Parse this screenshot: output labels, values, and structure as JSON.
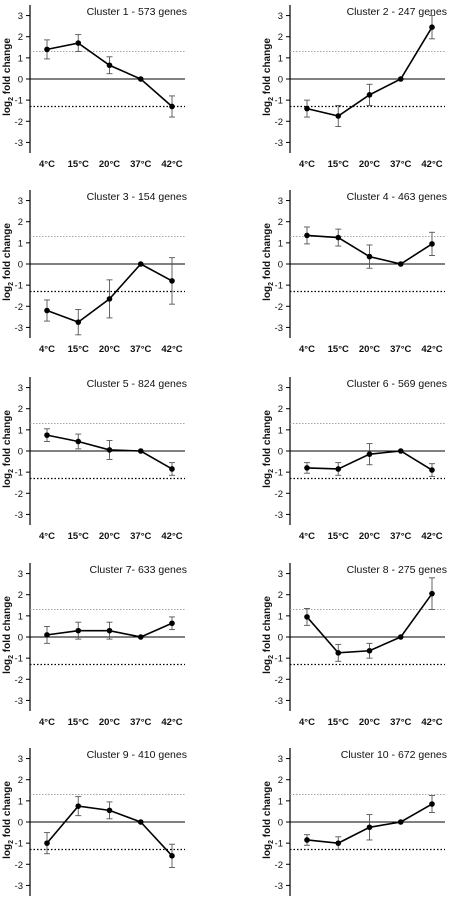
{
  "colors": {
    "line": "#000000",
    "axis": "#000000",
    "threshold_dotted": "#000000",
    "threshold_light": "#9a9a9a",
    "error_bar": "#555555"
  },
  "chart_data": [
    {
      "type": "line",
      "title": "Cluster 1 - 573 genes",
      "ylabel": "log2 fold change",
      "xlabel": "",
      "categories": [
        "4°C",
        "15°C",
        "20°C",
        "37°C",
        "42°C"
      ],
      "values": [
        1.4,
        1.7,
        0.65,
        0.0,
        -1.3
      ],
      "errors": [
        0.45,
        0.4,
        0.4,
        0.0,
        0.5
      ],
      "ylim": [
        -3.5,
        3.5
      ],
      "yticks": [
        3,
        2,
        1,
        0,
        -1,
        -2,
        -3
      ],
      "thresholds": {
        "upper": 1.3,
        "lower": -1.3
      },
      "grid": false
    },
    {
      "type": "line",
      "title": "Cluster 2 - 247 genes",
      "ylabel": "log2 fold change",
      "xlabel": "",
      "categories": [
        "4°C",
        "15°C",
        "20°C",
        "37°C",
        "42°C"
      ],
      "values": [
        -1.4,
        -1.75,
        -0.75,
        0.0,
        2.45
      ],
      "errors": [
        0.4,
        0.5,
        0.5,
        0.0,
        0.55
      ],
      "ylim": [
        -3.5,
        3.5
      ],
      "yticks": [
        3,
        2,
        1,
        0,
        -1,
        -2,
        -3
      ],
      "thresholds": {
        "upper": 1.3,
        "lower": -1.3
      },
      "grid": false
    },
    {
      "type": "line",
      "title": "Cluster 3 - 154 genes",
      "ylabel": "log2 fold change",
      "xlabel": "",
      "categories": [
        "4°C",
        "15°C",
        "20°C",
        "37°C",
        "42°C"
      ],
      "values": [
        -2.2,
        -2.75,
        -1.65,
        0.0,
        -0.8
      ],
      "errors": [
        0.5,
        0.6,
        0.9,
        0.0,
        1.1
      ],
      "ylim": [
        -3.5,
        3.5
      ],
      "yticks": [
        3,
        2,
        1,
        0,
        -1,
        -2,
        -3
      ],
      "thresholds": {
        "upper": 1.3,
        "lower": -1.3
      },
      "grid": false
    },
    {
      "type": "line",
      "title": "Cluster 4 - 463 genes",
      "ylabel": "log2 fold change",
      "xlabel": "",
      "categories": [
        "4°C",
        "15°C",
        "20°C",
        "37°C",
        "42°C"
      ],
      "values": [
        1.35,
        1.25,
        0.35,
        0.0,
        0.95
      ],
      "errors": [
        0.4,
        0.4,
        0.55,
        0.0,
        0.55
      ],
      "ylim": [
        -3.5,
        3.5
      ],
      "yticks": [
        3,
        2,
        1,
        0,
        -1,
        -2,
        -3
      ],
      "thresholds": {
        "upper": 1.3,
        "lower": -1.3
      },
      "grid": false
    },
    {
      "type": "line",
      "title": "Cluster 5 - 824 genes",
      "ylabel": "log2 fold change",
      "xlabel": "",
      "categories": [
        "4°C",
        "15°C",
        "20°C",
        "37°C",
        "42°C"
      ],
      "values": [
        0.75,
        0.45,
        0.05,
        0.0,
        -0.85
      ],
      "errors": [
        0.3,
        0.35,
        0.45,
        0.0,
        0.3
      ],
      "ylim": [
        -3.5,
        3.5
      ],
      "yticks": [
        3,
        2,
        1,
        0,
        -1,
        -2,
        -3
      ],
      "thresholds": {
        "upper": 1.3,
        "lower": -1.3
      },
      "grid": false
    },
    {
      "type": "line",
      "title": "Cluster 6 - 569 genes",
      "ylabel": "log2 fold change",
      "xlabel": "",
      "categories": [
        "4°C",
        "15°C",
        "20°C",
        "37°C",
        "42°C"
      ],
      "values": [
        -0.8,
        -0.85,
        -0.15,
        0.0,
        -0.9
      ],
      "errors": [
        0.25,
        0.3,
        0.5,
        0.0,
        0.3
      ],
      "ylim": [
        -3.5,
        3.5
      ],
      "yticks": [
        3,
        2,
        1,
        0,
        -1,
        -2,
        -3
      ],
      "thresholds": {
        "upper": 1.3,
        "lower": -1.3
      },
      "grid": false
    },
    {
      "type": "line",
      "title": "Cluster 7- 633 genes",
      "ylabel": "log2 fold change",
      "xlabel": "",
      "categories": [
        "4°C",
        "15°C",
        "20°C",
        "37°C",
        "42°C"
      ],
      "values": [
        0.1,
        0.3,
        0.3,
        0.0,
        0.65
      ],
      "errors": [
        0.4,
        0.4,
        0.4,
        0.0,
        0.3
      ],
      "ylim": [
        -3.5,
        3.5
      ],
      "yticks": [
        3,
        2,
        1,
        0,
        -1,
        -2,
        -3
      ],
      "thresholds": {
        "upper": 1.3,
        "lower": -1.3
      },
      "grid": false
    },
    {
      "type": "line",
      "title": "Cluster 8 - 275 genes",
      "ylabel": "log2 fold change",
      "xlabel": "",
      "categories": [
        "4°C",
        "15°C",
        "20°C",
        "37°C",
        "42°C"
      ],
      "values": [
        0.95,
        -0.75,
        -0.65,
        0.0,
        2.05
      ],
      "errors": [
        0.4,
        0.4,
        0.35,
        0.0,
        0.75
      ],
      "ylim": [
        -3.5,
        3.5
      ],
      "yticks": [
        3,
        2,
        1,
        0,
        -1,
        -2,
        -3
      ],
      "thresholds": {
        "upper": 1.3,
        "lower": -1.3
      },
      "grid": false
    },
    {
      "type": "line",
      "title": "Cluster 9 - 410 genes",
      "ylabel": "log2 fold change",
      "xlabel": "",
      "categories": [
        "4°C",
        "15°C",
        "20°C",
        "37°C",
        "42°C"
      ],
      "values": [
        -1.0,
        0.75,
        0.55,
        0.0,
        -1.6
      ],
      "errors": [
        0.5,
        0.45,
        0.4,
        0.0,
        0.55
      ],
      "ylim": [
        -3.5,
        3.5
      ],
      "yticks": [
        3,
        2,
        1,
        0,
        -1,
        -2,
        -3
      ],
      "thresholds": {
        "upper": 1.3,
        "lower": -1.3
      },
      "grid": false
    },
    {
      "type": "line",
      "title": "Cluster 10 - 672 genes",
      "ylabel": "log2 fold change",
      "xlabel": "",
      "categories": [
        "4°C",
        "15°C",
        "20°C",
        "37°C",
        "42°C"
      ],
      "values": [
        -0.85,
        -1.0,
        -0.25,
        0.0,
        0.85
      ],
      "errors": [
        0.25,
        0.3,
        0.6,
        0.0,
        0.4
      ],
      "ylim": [
        -3.5,
        3.5
      ],
      "yticks": [
        3,
        2,
        1,
        0,
        -1,
        -2,
        -3
      ],
      "thresholds": {
        "upper": 1.3,
        "lower": -1.3
      },
      "grid": false
    }
  ]
}
